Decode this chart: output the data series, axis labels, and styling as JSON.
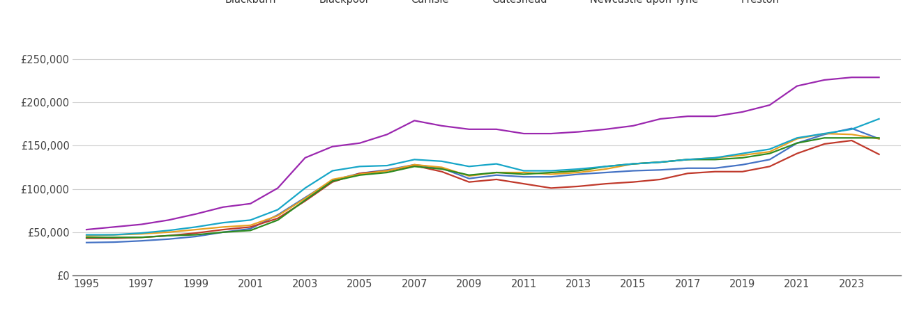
{
  "years": [
    1995,
    1996,
    1997,
    1998,
    1999,
    2000,
    2001,
    2002,
    2003,
    2004,
    2005,
    2006,
    2007,
    2008,
    2009,
    2010,
    2011,
    2012,
    2013,
    2014,
    2015,
    2016,
    2017,
    2018,
    2019,
    2020,
    2021,
    2022,
    2023,
    2024
  ],
  "series": {
    "Blackburn": [
      38000,
      38500,
      40000,
      42000,
      45000,
      50000,
      54000,
      70000,
      90000,
      110000,
      118000,
      122000,
      128000,
      124000,
      112000,
      116000,
      114000,
      114000,
      117000,
      119000,
      121000,
      122000,
      124000,
      124000,
      128000,
      134000,
      153000,
      163000,
      170000,
      158000
    ],
    "Blackpool": [
      43000,
      43000,
      44000,
      46000,
      49000,
      53000,
      56000,
      66000,
      86000,
      108000,
      118000,
      121000,
      127000,
      120000,
      108000,
      111000,
      106000,
      101000,
      103000,
      106000,
      108000,
      111000,
      118000,
      120000,
      120000,
      126000,
      141000,
      152000,
      156000,
      140000
    ],
    "Carlisle": [
      46000,
      47000,
      48000,
      50000,
      53000,
      56000,
      58000,
      69000,
      89000,
      111000,
      117000,
      121000,
      128000,
      125000,
      115000,
      119000,
      119000,
      117000,
      119000,
      123000,
      129000,
      131000,
      134000,
      136000,
      139000,
      143000,
      158000,
      164000,
      163000,
      158000
    ],
    "Gateshead": [
      44000,
      44000,
      44000,
      46000,
      47000,
      50000,
      52000,
      64000,
      87000,
      109000,
      116000,
      119000,
      126000,
      123000,
      116000,
      119000,
      117000,
      119000,
      121000,
      126000,
      129000,
      131000,
      134000,
      134000,
      136000,
      141000,
      153000,
      159000,
      159000,
      159000
    ],
    "Newcastle upon Tyne": [
      53000,
      56000,
      59000,
      64000,
      71000,
      79000,
      83000,
      101000,
      136000,
      149000,
      153000,
      163000,
      179000,
      173000,
      169000,
      169000,
      164000,
      164000,
      166000,
      169000,
      173000,
      181000,
      184000,
      184000,
      189000,
      197000,
      219000,
      226000,
      229000,
      229000
    ],
    "Preston": [
      47000,
      47000,
      49000,
      52000,
      56000,
      61000,
      64000,
      76000,
      101000,
      121000,
      126000,
      127000,
      134000,
      132000,
      126000,
      129000,
      121000,
      121000,
      123000,
      126000,
      129000,
      131000,
      134000,
      136000,
      141000,
      146000,
      159000,
      164000,
      169000,
      181000
    ]
  },
  "colors": {
    "Blackburn": "#4472C4",
    "Blackpool": "#C0392B",
    "Carlisle": "#E8A020",
    "Gateshead": "#2E8B20",
    "Newcastle upon Tyne": "#9B27AF",
    "Preston": "#17A6C8"
  },
  "ylim": [
    0,
    275000
  ],
  "yticks": [
    0,
    50000,
    100000,
    150000,
    200000,
    250000
  ],
  "ytick_labels": [
    "£0",
    "£50,000",
    "£100,000",
    "£150,000",
    "£200,000",
    "£250,000"
  ],
  "xticks": [
    1995,
    1997,
    1999,
    2001,
    2003,
    2005,
    2007,
    2009,
    2011,
    2013,
    2015,
    2017,
    2019,
    2021,
    2023
  ],
  "xlim_left": 1994.5,
  "xlim_right": 2024.8,
  "background_color": "#ffffff",
  "grid_color": "#d0d0d0",
  "line_width": 1.6
}
